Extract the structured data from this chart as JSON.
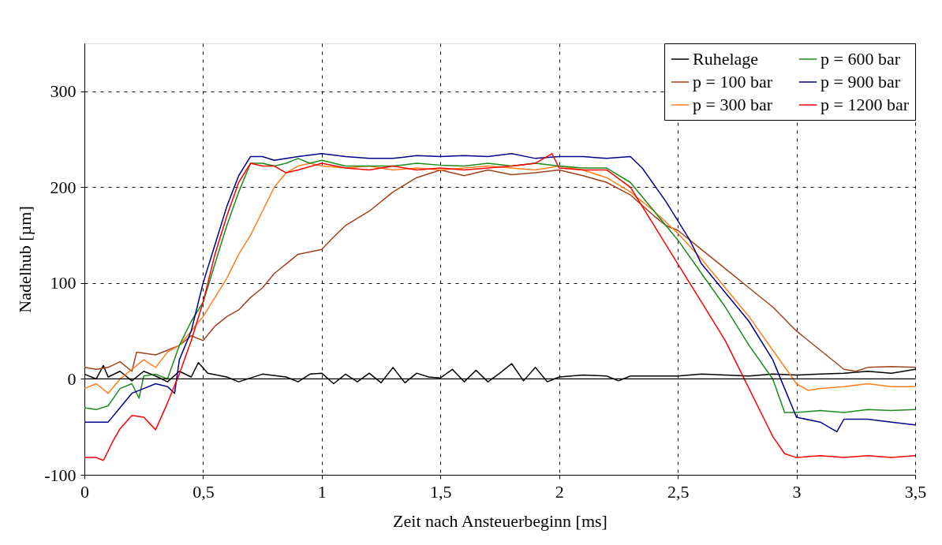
{
  "chart_data": {
    "type": "line",
    "xlabel": "Zeit nach Ansteuerbeginn [ms]",
    "ylabel": "Nadelhub [µm]",
    "xlim": [
      0,
      3.5
    ],
    "ylim": [
      -100,
      350
    ],
    "xticks": [
      0,
      {
        "value": 0.5,
        "label": "0,5"
      },
      1,
      {
        "value": 1.5,
        "label": "1,5"
      },
      2,
      {
        "value": 2.5,
        "label": "2,5"
      },
      3,
      {
        "value": 3.5,
        "label": "3,5"
      }
    ],
    "yticks": [
      -100,
      0,
      100,
      200,
      300
    ],
    "grid": true,
    "legend": "top right",
    "marker": "none",
    "line_style": "solid",
    "ref_lines": [
      {
        "axis": "y",
        "value": 0,
        "label": null,
        "color": "#000000",
        "line_style": "solid"
      }
    ],
    "series": [
      {
        "name": "Ruhelage",
        "color": "#000000",
        "x": [
          0,
          0.05,
          0.08,
          0.1,
          0.15,
          0.2,
          0.25,
          0.3,
          0.35,
          0.4,
          0.45,
          0.48,
          0.52,
          0.6,
          0.65,
          0.75,
          0.85,
          0.9,
          0.95,
          1.0,
          1.05,
          1.1,
          1.15,
          1.2,
          1.25,
          1.3,
          1.35,
          1.4,
          1.45,
          1.5,
          1.55,
          1.6,
          1.65,
          1.7,
          1.75,
          1.8,
          1.85,
          1.9,
          1.95,
          2.0,
          2.1,
          2.2,
          2.25,
          2.3,
          2.4,
          2.5,
          2.6,
          2.7,
          2.8,
          2.9,
          3.0,
          3.1,
          3.2,
          3.3,
          3.4,
          3.5
        ],
        "values": [
          5,
          0,
          14,
          2,
          8,
          -2,
          8,
          3,
          -3,
          8,
          2,
          17,
          6,
          2,
          -3,
          5,
          2,
          -3,
          5,
          6,
          -5,
          5,
          -3,
          6,
          -4,
          12,
          -4,
          6,
          2,
          1,
          10,
          -3,
          9,
          -3,
          6,
          16,
          -2,
          12,
          -3,
          2,
          4,
          3,
          -2,
          3,
          3,
          3,
          5,
          4,
          3,
          5,
          4,
          5,
          6,
          8,
          6,
          10
        ]
      },
      {
        "name": "p = 100 bar",
        "color": "#a0421b",
        "x": [
          0,
          0.05,
          0.1,
          0.15,
          0.2,
          0.22,
          0.3,
          0.35,
          0.4,
          0.45,
          0.5,
          0.55,
          0.6,
          0.65,
          0.7,
          0.75,
          0.8,
          0.85,
          0.9,
          1.0,
          1.05,
          1.1,
          1.2,
          1.3,
          1.4,
          1.5,
          1.6,
          1.7,
          1.8,
          1.9,
          2.0,
          2.1,
          2.2,
          2.3,
          2.4,
          2.45,
          2.5,
          2.6,
          2.7,
          2.8,
          2.9,
          3.0,
          3.1,
          3.2,
          3.25,
          3.3,
          3.4,
          3.5
        ],
        "values": [
          12,
          10,
          12,
          18,
          8,
          28,
          25,
          30,
          35,
          45,
          40,
          55,
          65,
          72,
          85,
          95,
          110,
          120,
          130,
          135,
          148,
          160,
          175,
          195,
          210,
          218,
          212,
          218,
          213,
          215,
          218,
          212,
          205,
          192,
          170,
          160,
          155,
          135,
          115,
          95,
          75,
          50,
          30,
          10,
          8,
          12,
          13,
          12
        ]
      },
      {
        "name": "p = 300 bar",
        "color": "#ff7f1f",
        "x": [
          0,
          0.05,
          0.1,
          0.15,
          0.2,
          0.25,
          0.3,
          0.35,
          0.4,
          0.45,
          0.5,
          0.55,
          0.6,
          0.65,
          0.7,
          0.75,
          0.8,
          0.85,
          0.9,
          0.95,
          1.0,
          1.1,
          1.2,
          1.3,
          1.4,
          1.5,
          1.6,
          1.7,
          1.8,
          1.9,
          2.0,
          2.1,
          2.2,
          2.3,
          2.4,
          2.5,
          2.6,
          2.7,
          2.8,
          2.9,
          3.0,
          3.05,
          3.1,
          3.2,
          3.3,
          3.4,
          3.5
        ],
        "values": [
          -10,
          -5,
          -15,
          0,
          10,
          20,
          12,
          28,
          35,
          50,
          65,
          85,
          105,
          130,
          150,
          175,
          200,
          215,
          222,
          225,
          222,
          220,
          222,
          218,
          220,
          218,
          220,
          222,
          220,
          218,
          222,
          218,
          210,
          195,
          175,
          152,
          125,
          95,
          65,
          30,
          -5,
          -12,
          -10,
          -8,
          -5,
          -8,
          -8
        ]
      },
      {
        "name": "p = 600 bar",
        "color": "#1a8c1a",
        "x": [
          0,
          0.05,
          0.1,
          0.15,
          0.2,
          0.23,
          0.25,
          0.3,
          0.35,
          0.4,
          0.45,
          0.5,
          0.55,
          0.6,
          0.65,
          0.7,
          0.75,
          0.8,
          0.85,
          0.9,
          0.95,
          1.0,
          1.1,
          1.2,
          1.3,
          1.4,
          1.5,
          1.6,
          1.7,
          1.8,
          1.9,
          2.0,
          2.1,
          2.2,
          2.3,
          2.4,
          2.5,
          2.6,
          2.7,
          2.8,
          2.9,
          2.95,
          3.0,
          3.1,
          3.2,
          3.3,
          3.4,
          3.5
        ],
        "values": [
          -30,
          -32,
          -28,
          -10,
          -5,
          -20,
          3,
          5,
          0,
          35,
          60,
          80,
          120,
          160,
          195,
          225,
          225,
          222,
          225,
          230,
          225,
          228,
          222,
          222,
          222,
          225,
          223,
          222,
          225,
          222,
          225,
          222,
          220,
          220,
          205,
          175,
          145,
          110,
          75,
          35,
          0,
          -35,
          -35,
          -33,
          -35,
          -32,
          -33,
          -32
        ]
      },
      {
        "name": "p = 900 bar",
        "color": "#00008b",
        "x": [
          0,
          0.05,
          0.1,
          0.15,
          0.2,
          0.25,
          0.3,
          0.35,
          0.38,
          0.4,
          0.45,
          0.5,
          0.55,
          0.6,
          0.65,
          0.7,
          0.75,
          0.8,
          0.9,
          1.0,
          1.1,
          1.2,
          1.3,
          1.4,
          1.5,
          1.6,
          1.7,
          1.8,
          1.9,
          2.0,
          2.1,
          2.2,
          2.3,
          2.35,
          2.45,
          2.5,
          2.55,
          2.6,
          2.7,
          2.8,
          2.9,
          2.95,
          3.0,
          3.1,
          3.17,
          3.2,
          3.3,
          3.4,
          3.5
        ],
        "values": [
          -45,
          -45,
          -45,
          -30,
          -15,
          -10,
          -5,
          -8,
          -15,
          20,
          50,
          100,
          140,
          180,
          212,
          232,
          232,
          228,
          232,
          235,
          232,
          230,
          230,
          233,
          232,
          233,
          232,
          235,
          230,
          232,
          232,
          230,
          232,
          220,
          185,
          165,
          145,
          120,
          90,
          60,
          20,
          -10,
          -40,
          -45,
          -55,
          -42,
          -42,
          -45,
          -48
        ]
      },
      {
        "name": "p = 1200 bar",
        "color": "#ff0000",
        "x": [
          0,
          0.05,
          0.08,
          0.12,
          0.15,
          0.2,
          0.25,
          0.3,
          0.35,
          0.4,
          0.45,
          0.5,
          0.55,
          0.6,
          0.65,
          0.7,
          0.75,
          0.8,
          0.85,
          0.9,
          1.0,
          1.1,
          1.2,
          1.3,
          1.4,
          1.5,
          1.6,
          1.7,
          1.8,
          1.9,
          1.97,
          2.0,
          2.1,
          2.2,
          2.3,
          2.4,
          2.5,
          2.6,
          2.7,
          2.8,
          2.85,
          2.9,
          2.95,
          3.0,
          3.1,
          3.2,
          3.3,
          3.4,
          3.5
        ],
        "values": [
          -82,
          -82,
          -85,
          -65,
          -52,
          -38,
          -40,
          -53,
          -25,
          5,
          40,
          80,
          130,
          170,
          205,
          225,
          222,
          222,
          215,
          218,
          225,
          220,
          218,
          222,
          218,
          220,
          218,
          220,
          222,
          225,
          235,
          220,
          218,
          218,
          200,
          160,
          120,
          80,
          40,
          -10,
          -35,
          -60,
          -78,
          -82,
          -80,
          -82,
          -80,
          -82,
          -80
        ]
      }
    ]
  }
}
